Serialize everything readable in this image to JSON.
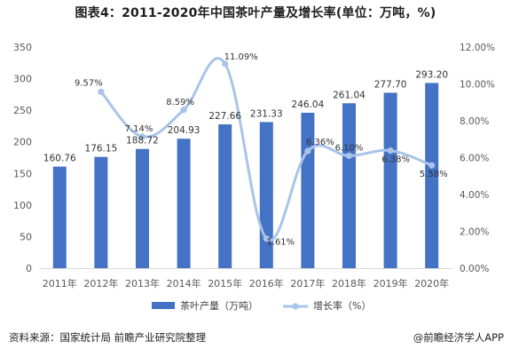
{
  "title": "图表4：2011-2020年中国茶叶产量及增长率(单位：万吨，%)",
  "source": "资料来源：国家统计局 前瞻产业研究院整理",
  "brand": "@前瞻经济学人APP",
  "colors": {
    "bar": "#4472C4",
    "line": "#A9C4E8",
    "axis_text": "#595959",
    "grid": "#D9D9D9"
  },
  "chart_data": {
    "type": "bar",
    "categories": [
      "2011年",
      "2012年",
      "2013年",
      "2014年",
      "2015年",
      "2016年",
      "2017年",
      "2018年",
      "2019年",
      "2020年"
    ],
    "series": [
      {
        "name": "茶叶产量（万吨）",
        "type": "bar",
        "axis": "left",
        "values": [
          160.76,
          176.15,
          188.72,
          204.93,
          227.66,
          231.33,
          246.04,
          261.04,
          277.7,
          293.2
        ],
        "labels": [
          "160.76",
          "176.15",
          "188.72",
          "204.93",
          "227.66",
          "231.33",
          "246.04",
          "261.04",
          "277.70",
          "293.20"
        ]
      },
      {
        "name": "增长率（%）",
        "type": "line",
        "axis": "right",
        "values": [
          null,
          9.57,
          7.14,
          8.59,
          11.09,
          1.61,
          6.36,
          6.1,
          6.38,
          5.58
        ],
        "labels": [
          "",
          "9.57%",
          "7.14%",
          "8.59%",
          "11.09%",
          "1.61%",
          "6.36%",
          "6.10%",
          "6.38%",
          "5.58%"
        ]
      }
    ],
    "y_left": {
      "min": 0,
      "max": 350,
      "ticks": [
        0,
        50,
        100,
        150,
        200,
        250,
        300,
        350
      ]
    },
    "y_right": {
      "min": 0,
      "max": 12,
      "ticks": [
        "0.00%",
        "2.00%",
        "4.00%",
        "6.00%",
        "8.00%",
        "10.00%",
        "12.00%"
      ]
    },
    "legend_position": "bottom"
  }
}
